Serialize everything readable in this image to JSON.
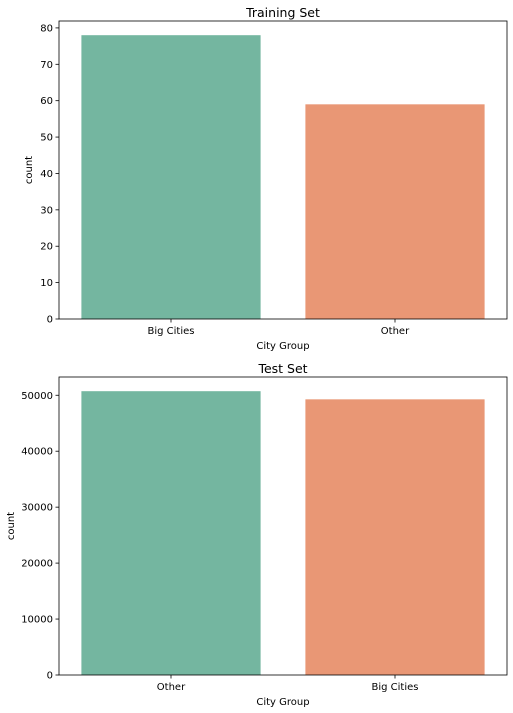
{
  "chart_data": [
    {
      "type": "bar",
      "title": "Training Set",
      "xlabel": "City Group",
      "ylabel": "count",
      "categories": [
        "Big Cities",
        "Other"
      ],
      "values": [
        78,
        59
      ],
      "colors": [
        "#74b6a0",
        "#e99775"
      ],
      "ylim": [
        0,
        81.9
      ],
      "yticks": [
        0,
        10,
        20,
        30,
        40,
        50,
        60,
        70,
        80
      ],
      "grid": false
    },
    {
      "type": "bar",
      "title": "Test Set",
      "xlabel": "City Group",
      "ylabel": "count",
      "categories": [
        "Other",
        "Big Cities"
      ],
      "values": [
        50728,
        49272
      ],
      "colors": [
        "#74b6a0",
        "#e99775"
      ],
      "ylim": [
        0,
        53264
      ],
      "yticks": [
        0,
        10000,
        20000,
        30000,
        40000,
        50000
      ],
      "grid": false
    }
  ]
}
